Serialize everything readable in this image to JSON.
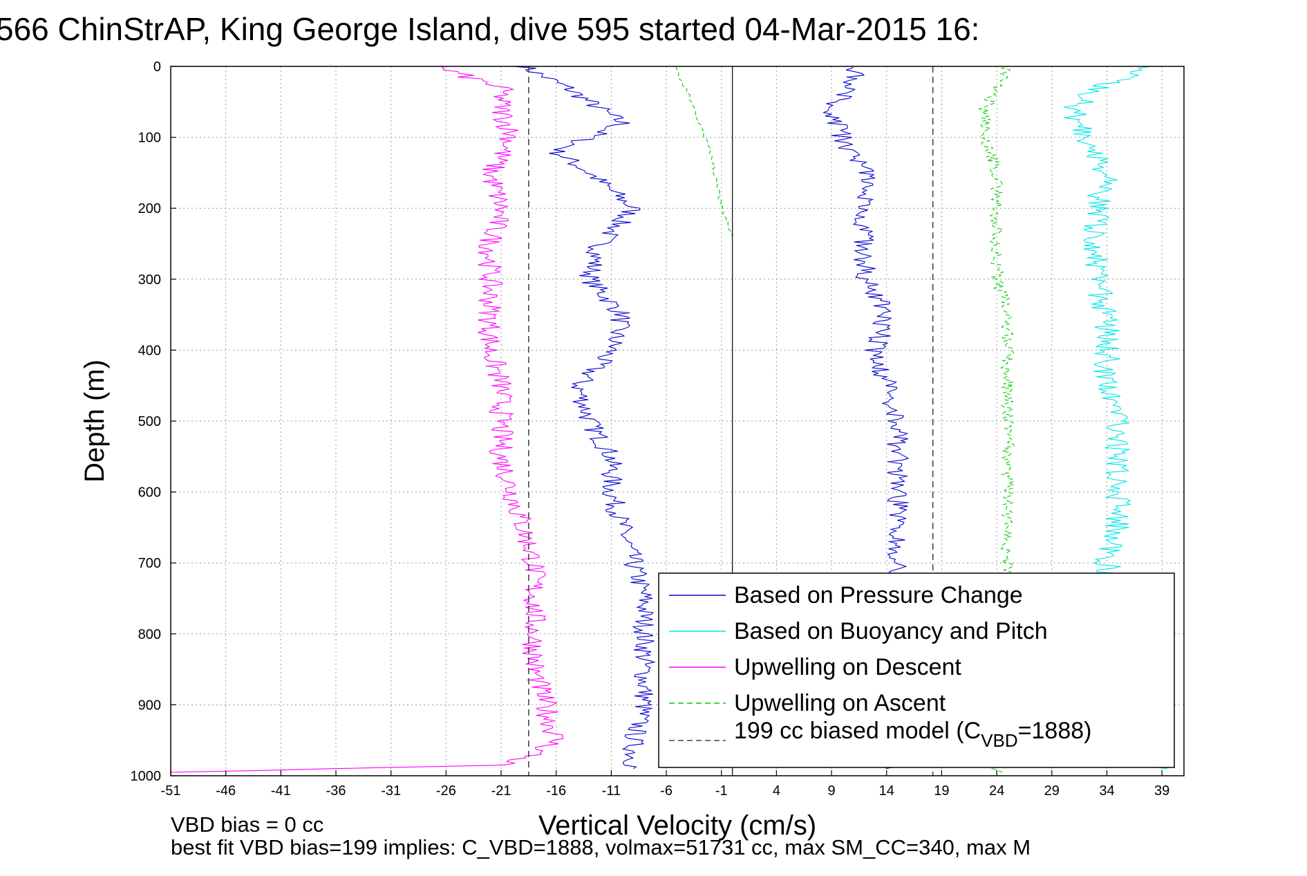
{
  "chart_data": {
    "type": "line",
    "title": "566 ChinStrAP, King George Island, dive 595 started 04-Mar-2015 16:",
    "xlabel": "Vertical Velocity (cm/s)",
    "ylabel": "Depth (m)",
    "xlim": [
      -51,
      41
    ],
    "ylim": [
      1000,
      0
    ],
    "y_reversed": true,
    "grid": true,
    "x_ticks": [
      "-51",
      "-46",
      "-41",
      "-36",
      "-31",
      "-26",
      "-21",
      "-16",
      "-11",
      "-6",
      "-1",
      "4",
      "9",
      "14",
      "19",
      "24",
      "29",
      "34",
      "39"
    ],
    "y_ticks": [
      "0",
      "100",
      "200",
      "300",
      "400",
      "500",
      "600",
      "700",
      "800",
      "900",
      "1000"
    ],
    "legend_position": "bottom-right",
    "series": [
      {
        "name": "Based on Pressure Change",
        "color": "#0000cc",
        "style": "solid",
        "descent": {
          "depth": [
            0,
            30,
            60,
            80,
            100,
            120,
            150,
            200,
            250,
            300,
            350,
            400,
            450,
            500,
            550,
            600,
            650,
            700,
            750,
            800,
            850,
            900,
            950,
            990
          ],
          "velocity": [
            -19,
            -15,
            -12,
            -10,
            -13,
            -16,
            -13,
            -9,
            -12,
            -13,
            -10,
            -11,
            -14,
            -13,
            -11,
            -11,
            -10,
            -9,
            -8,
            -8,
            -8,
            -8,
            -9,
            -9
          ]
        },
        "ascent": {
          "depth": [
            990,
            950,
            900,
            850,
            800,
            750,
            700,
            650,
            600,
            550,
            500,
            450,
            400,
            350,
            300,
            250,
            200,
            150,
            100,
            60,
            30,
            0
          ],
          "velocity": [
            14,
            15,
            15,
            15,
            15,
            15,
            15,
            15,
            15,
            15,
            15,
            14,
            13,
            14,
            12,
            12,
            12,
            12,
            10,
            9,
            11,
            11
          ]
        }
      },
      {
        "name": "Based on Buoyancy and Pitch",
        "color": "#00e5e5",
        "style": "solid",
        "descent": {
          "depth": [],
          "velocity": []
        },
        "ascent": {
          "depth": [
            990,
            950,
            900,
            850,
            800,
            750,
            700,
            650,
            600,
            550,
            500,
            450,
            400,
            350,
            300,
            250,
            200,
            150,
            100,
            60,
            30,
            0
          ],
          "velocity": [
            39,
            35,
            35,
            35,
            35,
            35,
            34,
            35,
            35,
            35,
            35,
            34,
            34,
            34,
            33,
            33,
            33,
            34,
            32,
            31,
            33,
            38
          ]
        }
      },
      {
        "name": "Upwelling on Descent",
        "color": "#ff00ff",
        "style": "solid",
        "descent": {
          "depth": [
            0,
            30,
            60,
            100,
            150,
            200,
            250,
            300,
            350,
            400,
            450,
            500,
            550,
            600,
            650,
            700,
            750,
            800,
            850,
            900,
            950,
            970,
            985,
            995
          ],
          "velocity": [
            -27,
            -21,
            -21,
            -20,
            -22,
            -21,
            -22,
            -22,
            -22,
            -22,
            -21,
            -21,
            -21,
            -20,
            -19,
            -18,
            -18,
            -18,
            -18,
            -17,
            -16,
            -18,
            -21,
            -51
          ]
        },
        "ascent": {
          "depth": [],
          "velocity": []
        }
      },
      {
        "name": "Upwelling on Ascent",
        "color": "#00cc00",
        "style": "dashed",
        "descent": {
          "depth": [
            0,
            10,
            40,
            80,
            120,
            160,
            200,
            240
          ],
          "velocity": [
            -5,
            -5,
            -4,
            -3,
            -2,
            -1.5,
            -1,
            0
          ]
        },
        "ascent": {
          "depth": [
            995,
            950,
            900,
            850,
            800,
            750,
            700,
            650,
            600,
            550,
            500,
            450,
            400,
            350,
            300,
            250,
            200,
            150,
            100,
            60,
            30,
            0
          ],
          "velocity": [
            24,
            25,
            25,
            25,
            25,
            25,
            25,
            25,
            25,
            25,
            25,
            25,
            25,
            25,
            24,
            24,
            24,
            24,
            23,
            23,
            24,
            25
          ]
        }
      },
      {
        "name": "199 cc biased model (C_VBD=1888)",
        "color": "#444444",
        "style": "dashed",
        "vertical_lines_at_velocity": [
          -18.5,
          18.2
        ]
      }
    ],
    "zero_line_velocity": 0
  },
  "legend": {
    "items": [
      {
        "label": "Based on Pressure Change",
        "color": "#0000cc",
        "style": "solid"
      },
      {
        "label": "Based on Buoyancy and Pitch",
        "color": "#00e5e5",
        "style": "solid"
      },
      {
        "label": "Upwelling on Descent",
        "color": "#ff00ff",
        "style": "solid"
      },
      {
        "label": "Upwelling on Ascent",
        "color": "#00cc00",
        "style": "dashed"
      }
    ],
    "model_label": "199 cc biased model (C",
    "model_sub": "VBD",
    "model_tail": "=1888)"
  },
  "footer": {
    "line1": "VBD bias = 0 cc",
    "line2": "best fit VBD bias=199 implies: C_VBD=1888, volmax=51731 cc, max SM_CC=340, max M"
  }
}
